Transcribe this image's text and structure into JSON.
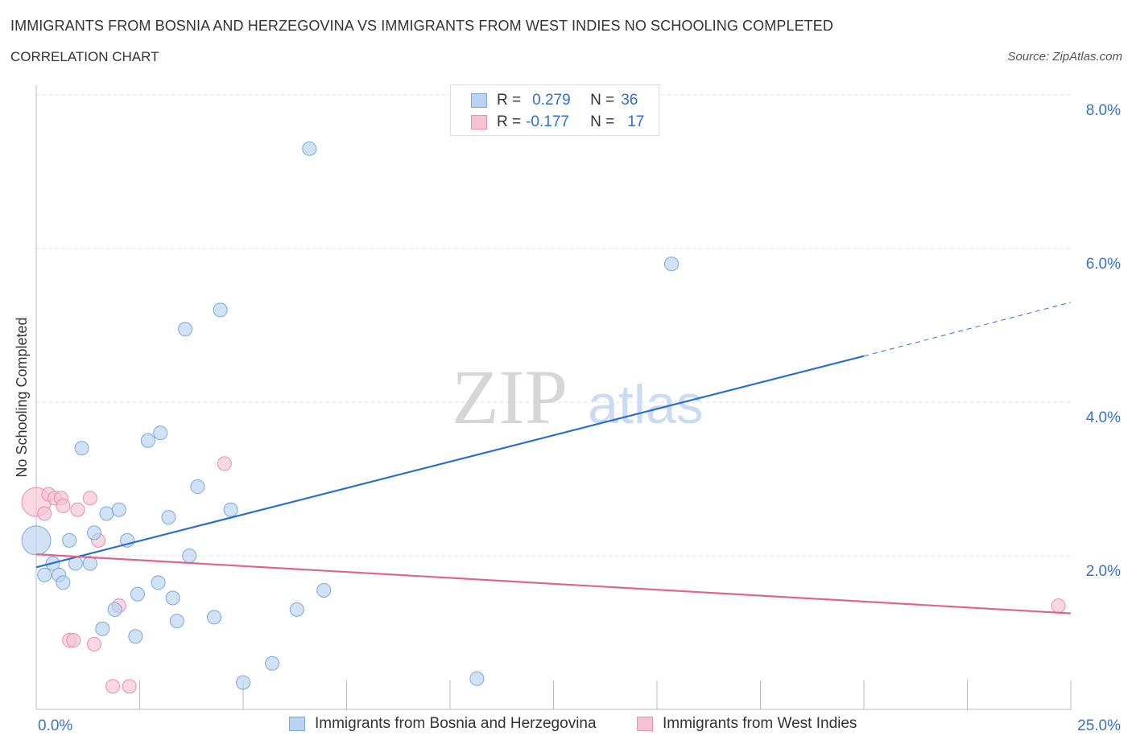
{
  "header": {
    "title": "IMMIGRANTS FROM BOSNIA AND HERZEGOVINA VS IMMIGRANTS FROM WEST INDIES NO SCHOOLING COMPLETED",
    "subtitle": "CORRELATION CHART",
    "source": "Source: ZipAtlas.com"
  },
  "watermark": {
    "zip": "ZIP",
    "atlas": "atlas"
  },
  "legend": {
    "rows": [
      {
        "r_label": "R =",
        "r_value": "0.279",
        "n_label": "N =",
        "n_value": "36"
      },
      {
        "r_label": "R =",
        "r_value": "-0.177",
        "n_label": "N =",
        "n_value": "17"
      }
    ]
  },
  "colors": {
    "blue_fill": "#b9d3f2",
    "blue_stroke": "#7aa9e0",
    "blue_line": "#2a6fcf",
    "pink_fill": "#f6c3d3",
    "pink_stroke": "#e88fae",
    "pink_line": "#e0648e",
    "axis_text": "#3a72c8",
    "grid": "#dddddd"
  },
  "chart_data": {
    "type": "scatter",
    "title": "IMMIGRANTS FROM BOSNIA AND HERZEGOVINA VS IMMIGRANTS FROM WEST INDIES NO SCHOOLING COMPLETED",
    "xlabel": "",
    "ylabel": "No Schooling Completed",
    "xlim": [
      0,
      25
    ],
    "ylim": [
      0,
      8
    ],
    "x_tick_labels": [
      "0.0%",
      "25.0%"
    ],
    "y_ticks": [
      2,
      4,
      6,
      8
    ],
    "y_tick_labels": [
      "2.0%",
      "4.0%",
      "6.0%",
      "8.0%"
    ],
    "grid": true,
    "legend_position": "bottom",
    "series": [
      {
        "name": "Immigrants from Bosnia and Herzegovina",
        "color": "#b9d3f2",
        "points": [
          {
            "x": 0.0,
            "y": 2.2,
            "big": true
          },
          {
            "x": 0.2,
            "y": 1.75
          },
          {
            "x": 0.4,
            "y": 1.9
          },
          {
            "x": 0.55,
            "y": 1.75
          },
          {
            "x": 0.65,
            "y": 1.65
          },
          {
            "x": 0.8,
            "y": 2.2
          },
          {
            "x": 0.95,
            "y": 1.9
          },
          {
            "x": 1.1,
            "y": 3.4
          },
          {
            "x": 1.3,
            "y": 1.9
          },
          {
            "x": 1.4,
            "y": 2.3
          },
          {
            "x": 1.6,
            "y": 1.05
          },
          {
            "x": 1.7,
            "y": 2.55
          },
          {
            "x": 1.9,
            "y": 1.3
          },
          {
            "x": 2.0,
            "y": 2.6
          },
          {
            "x": 2.2,
            "y": 2.2
          },
          {
            "x": 2.4,
            "y": 0.95
          },
          {
            "x": 2.45,
            "y": 1.5
          },
          {
            "x": 2.7,
            "y": 3.5
          },
          {
            "x": 2.95,
            "y": 1.65
          },
          {
            "x": 3.0,
            "y": 3.6
          },
          {
            "x": 3.2,
            "y": 2.5
          },
          {
            "x": 3.3,
            "y": 1.45
          },
          {
            "x": 3.4,
            "y": 1.15
          },
          {
            "x": 3.6,
            "y": 4.95
          },
          {
            "x": 3.7,
            "y": 2.0
          },
          {
            "x": 3.9,
            "y": 2.9
          },
          {
            "x": 4.3,
            "y": 1.2
          },
          {
            "x": 4.45,
            "y": 5.2
          },
          {
            "x": 4.7,
            "y": 2.6
          },
          {
            "x": 5.0,
            "y": 0.35
          },
          {
            "x": 5.7,
            "y": 0.6
          },
          {
            "x": 6.3,
            "y": 1.3
          },
          {
            "x": 6.6,
            "y": 7.3
          },
          {
            "x": 6.95,
            "y": 1.55
          },
          {
            "x": 10.65,
            "y": 0.4
          },
          {
            "x": 15.35,
            "y": 5.8
          }
        ],
        "trend": {
          "x0": 0,
          "y0": 1.85,
          "x1": 20,
          "y1": 4.6,
          "dash_to_x": 25,
          "dash_to_y": 5.3
        }
      },
      {
        "name": "Immigrants from West Indies",
        "color": "#f6c3d3",
        "points": [
          {
            "x": 0.0,
            "y": 2.7,
            "big": true
          },
          {
            "x": 0.2,
            "y": 2.55
          },
          {
            "x": 0.3,
            "y": 2.8
          },
          {
            "x": 0.45,
            "y": 2.75
          },
          {
            "x": 0.6,
            "y": 2.75
          },
          {
            "x": 0.65,
            "y": 2.65
          },
          {
            "x": 0.8,
            "y": 0.9
          },
          {
            "x": 0.9,
            "y": 0.9
          },
          {
            "x": 1.0,
            "y": 2.6
          },
          {
            "x": 1.3,
            "y": 2.75
          },
          {
            "x": 1.4,
            "y": 0.85
          },
          {
            "x": 1.5,
            "y": 2.2
          },
          {
            "x": 1.85,
            "y": 0.3
          },
          {
            "x": 2.0,
            "y": 1.35
          },
          {
            "x": 2.25,
            "y": 0.3
          },
          {
            "x": 4.55,
            "y": 3.2
          },
          {
            "x": 24.7,
            "y": 1.35
          }
        ],
        "trend": {
          "x0": 0,
          "y0": 2.02,
          "x1": 25,
          "y1": 1.25
        }
      }
    ]
  }
}
